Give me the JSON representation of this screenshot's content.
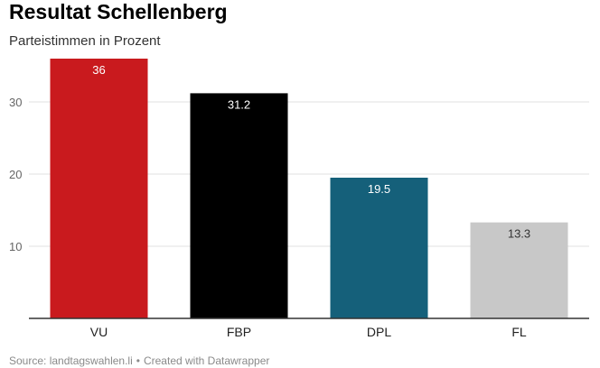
{
  "title": "Resultat Schellenberg",
  "subtitle": "Parteistimmen in Prozent",
  "footer": {
    "source": "Source: landtagswahlen.li",
    "separator": "•",
    "credit": "Created with Datawrapper"
  },
  "chart_data": {
    "type": "bar",
    "title": "Resultat Schellenberg",
    "subtitle": "Parteistimmen in Prozent",
    "categories": [
      "VU",
      "FBP",
      "DPL",
      "FL"
    ],
    "values": [
      36,
      31.2,
      19.5,
      13.3
    ],
    "value_labels": [
      "36",
      "31.2",
      "19.5",
      "13.3"
    ],
    "colors": [
      "#c91a1e",
      "#000000",
      "#15607a",
      "#c8c8c8"
    ],
    "label_colors": [
      "#ffffff",
      "#ffffff",
      "#ffffff",
      "#333333"
    ],
    "ylim": [
      0,
      36
    ],
    "yticks": [
      10,
      20,
      30
    ],
    "grid": true,
    "xlabel": "",
    "ylabel": ""
  }
}
